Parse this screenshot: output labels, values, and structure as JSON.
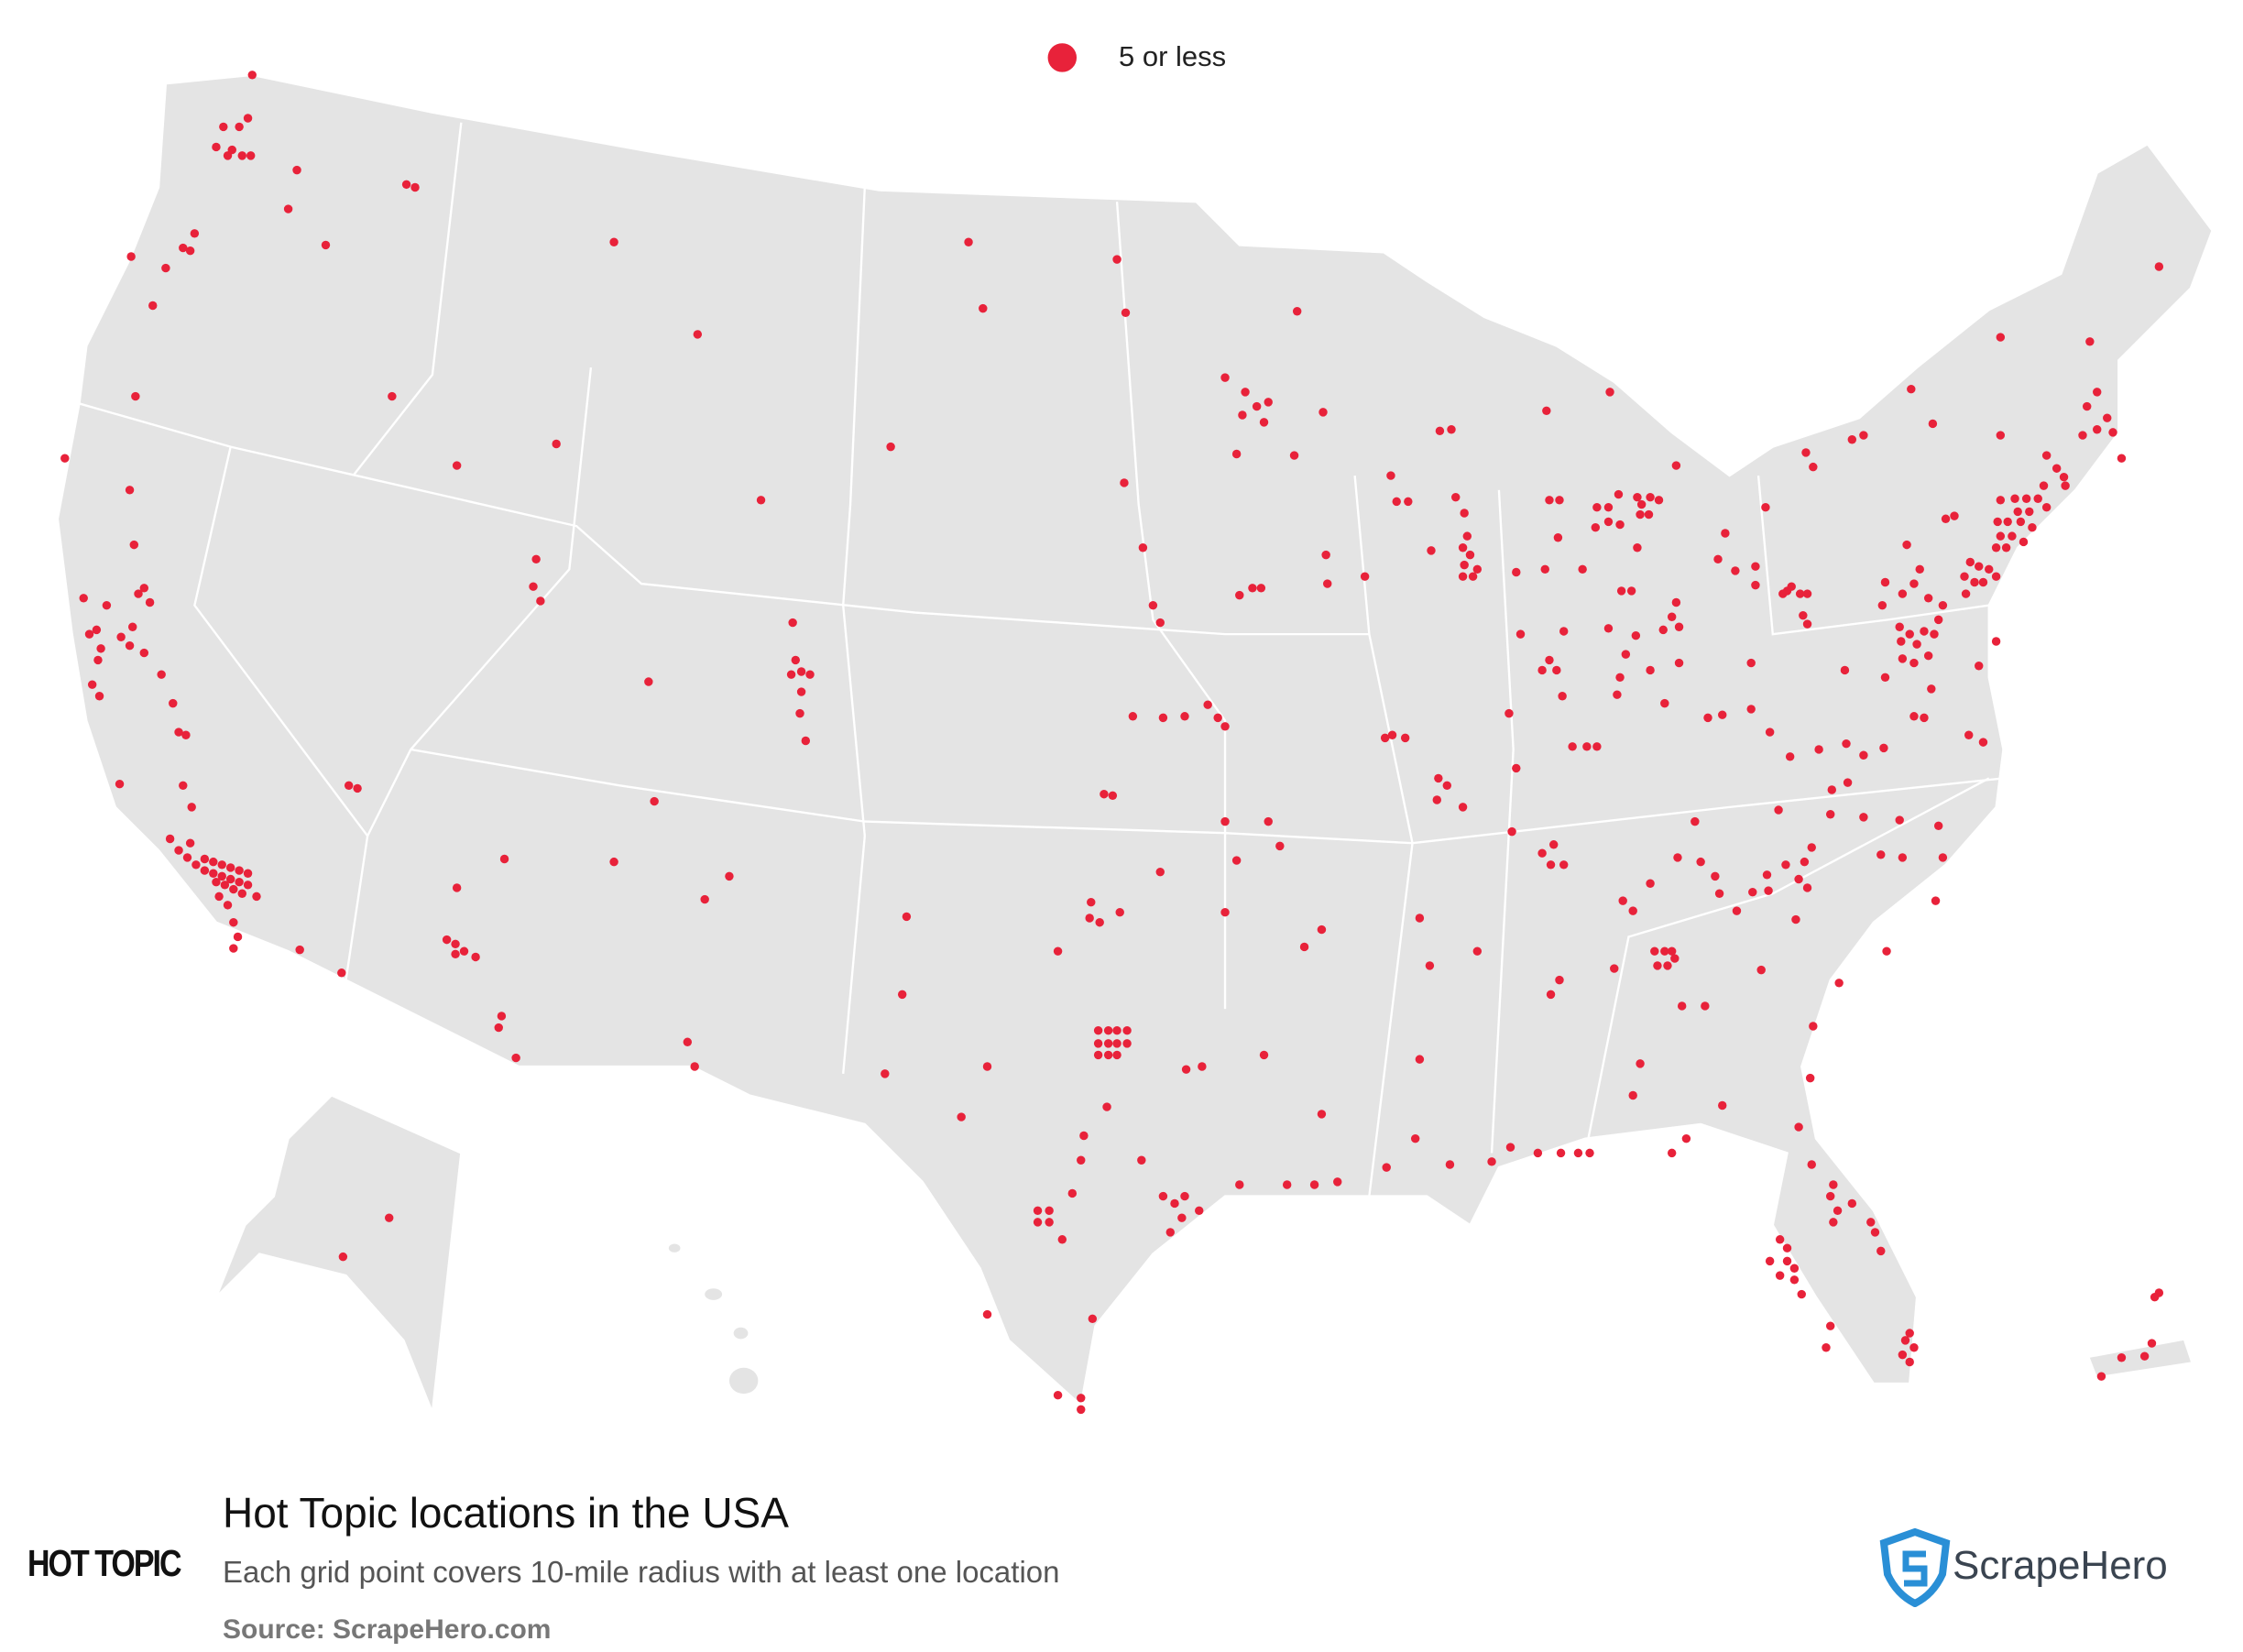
{
  "legend": {
    "label": "5 or less"
  },
  "title": "Hot Topic locations in the USA",
  "subtitle": "Each grid point covers 10-mile radius with at least one location",
  "source": "Source: ScrapeHero.com",
  "brand_logo": "HOT TOPIC",
  "publisher_logo": "ScrapeHero"
}
